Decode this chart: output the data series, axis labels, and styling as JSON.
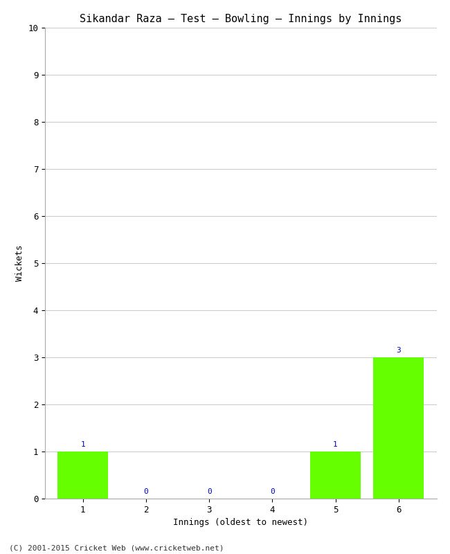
{
  "title": "Sikandar Raza – Test – Bowling – Innings by Innings",
  "xlabel": "Innings (oldest to newest)",
  "ylabel": "Wickets",
  "categories": [
    "1",
    "2",
    "3",
    "4",
    "5",
    "6"
  ],
  "values": [
    1,
    0,
    0,
    0,
    1,
    3
  ],
  "bar_color": "#66ff00",
  "label_color": "#0000cc",
  "ylim": [
    0,
    10
  ],
  "yticks": [
    0,
    1,
    2,
    3,
    4,
    5,
    6,
    7,
    8,
    9,
    10
  ],
  "background_color": "#ffffff",
  "plot_bg_color": "#ffffff",
  "grid_color": "#cccccc",
  "title_fontsize": 11,
  "axis_label_fontsize": 9,
  "tick_fontsize": 9,
  "value_label_fontsize": 8,
  "copyright_text": "(C) 2001-2015 Cricket Web (www.cricketweb.net)",
  "copyright_fontsize": 8
}
